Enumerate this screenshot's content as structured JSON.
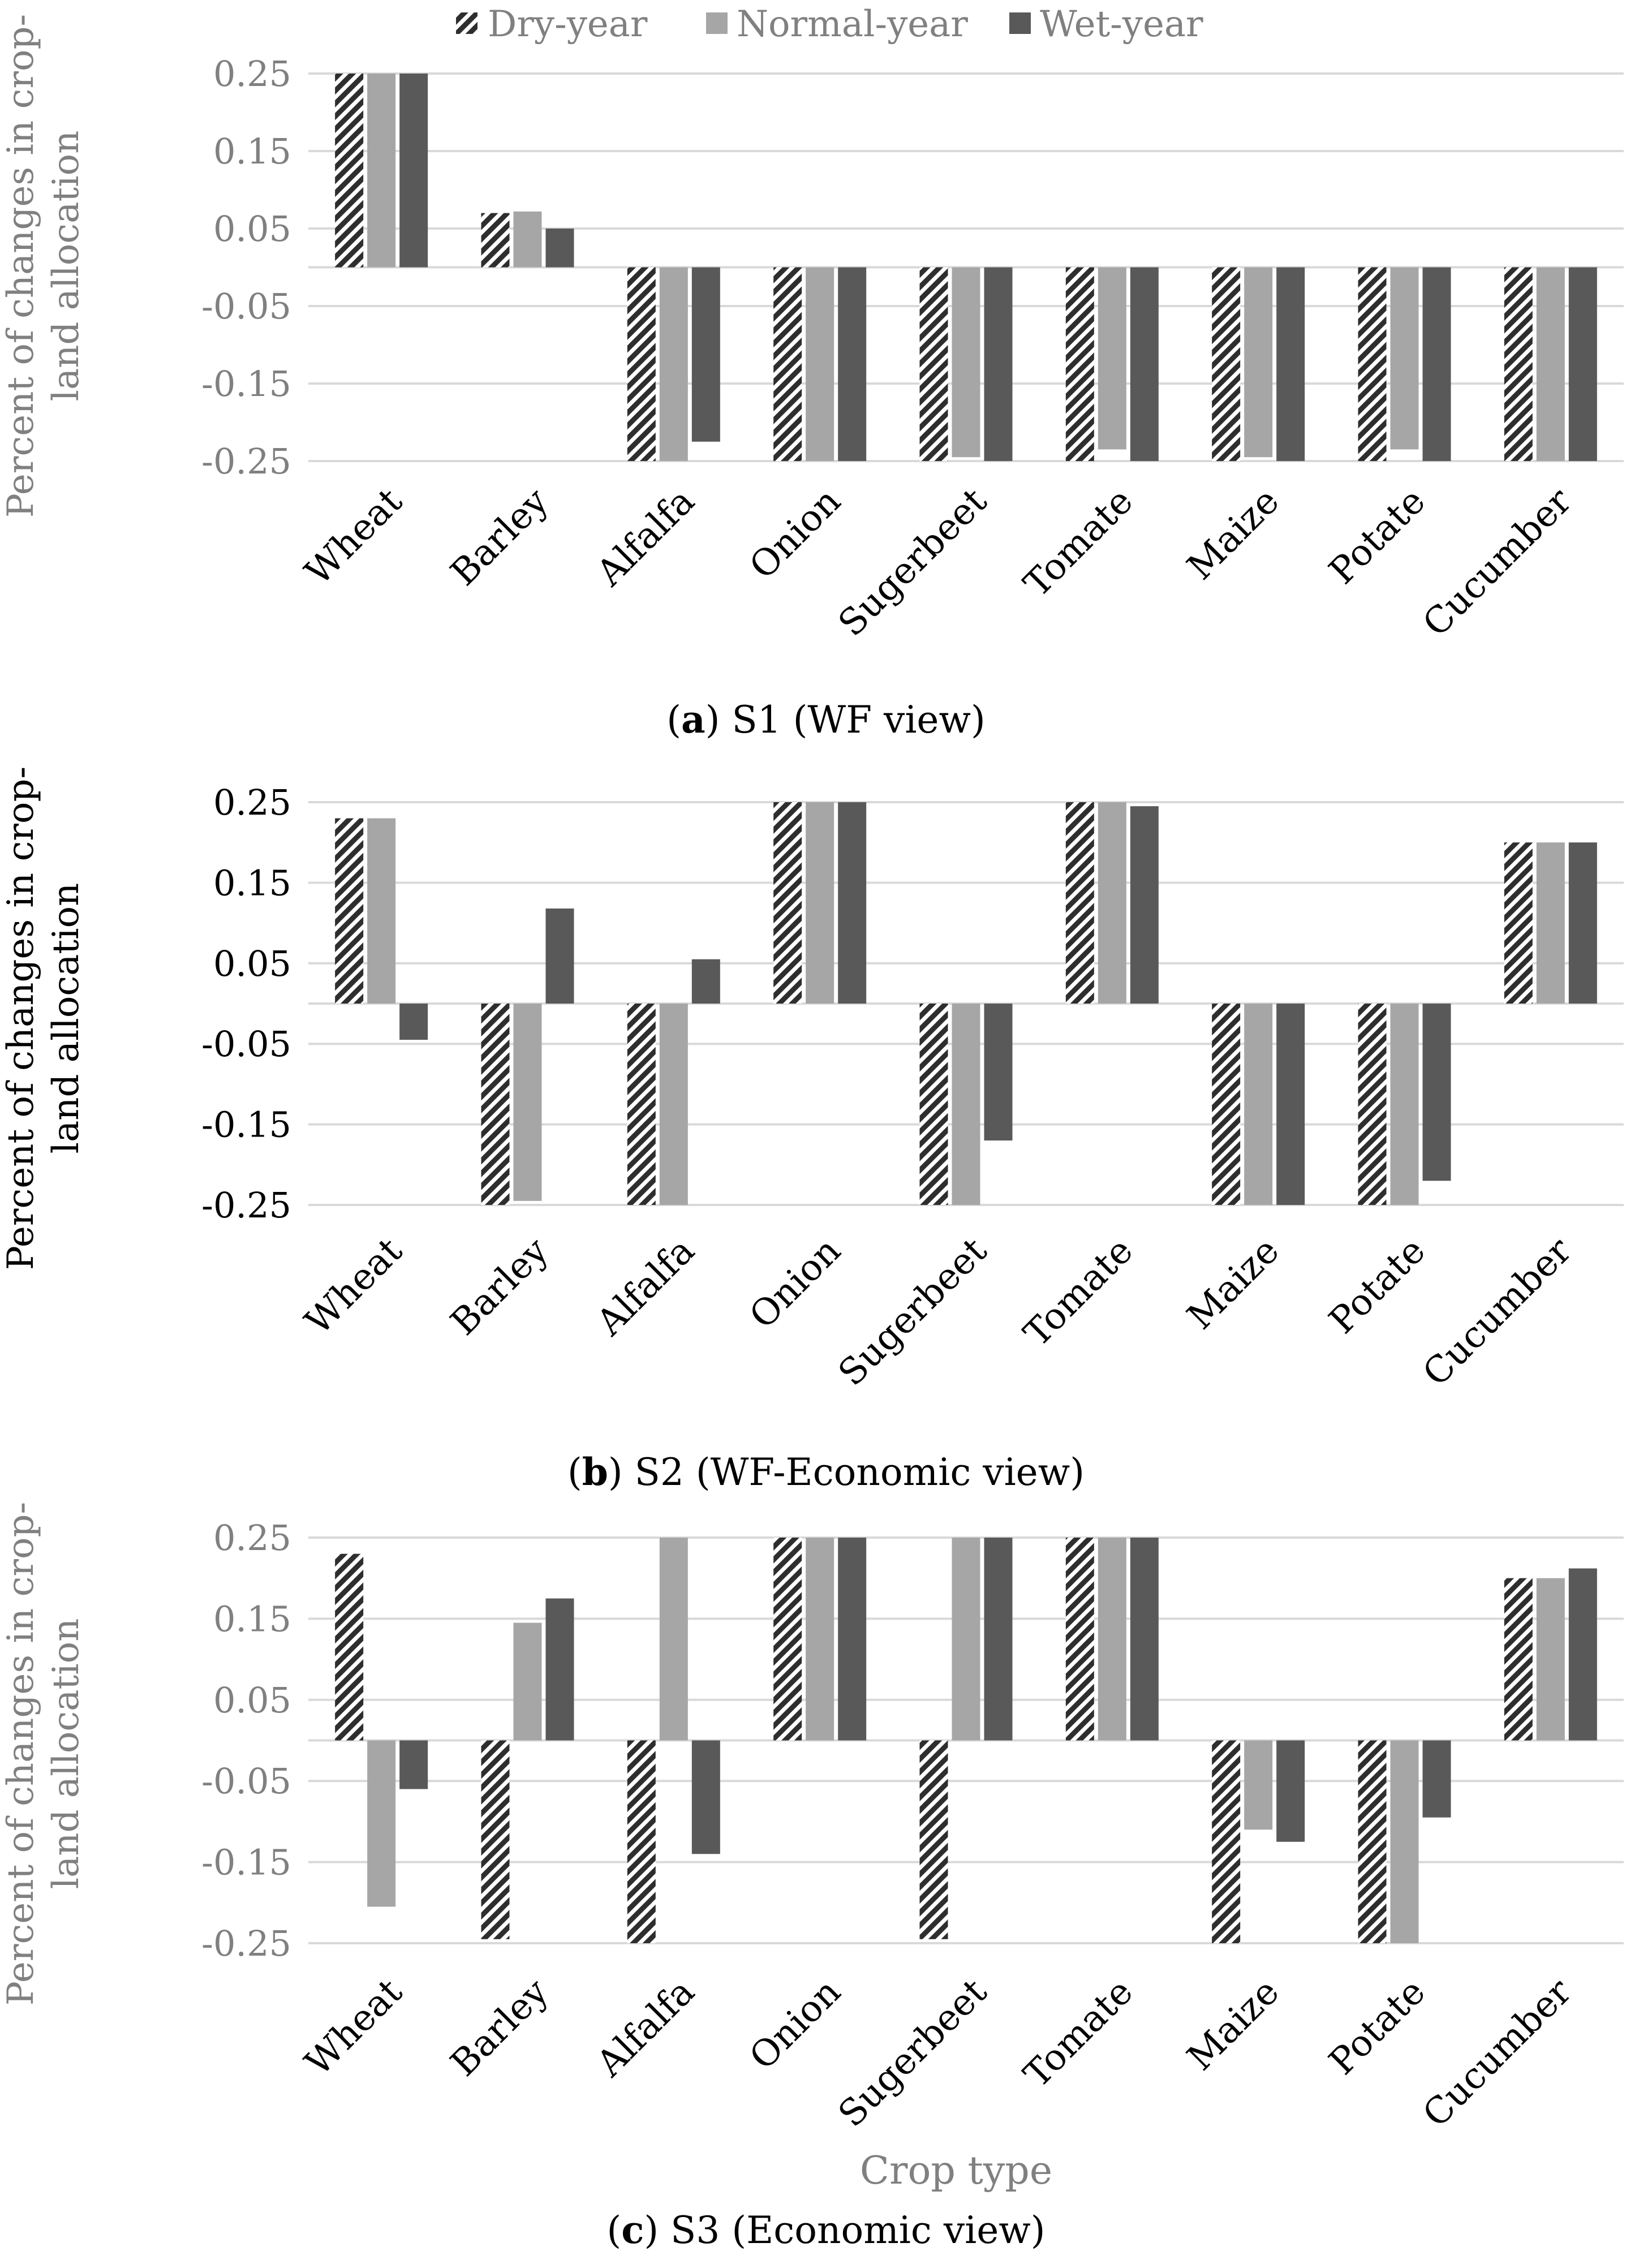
{
  "legend": {
    "items": [
      {
        "name": "Dry-year",
        "style": "hatch"
      },
      {
        "name": "Normal-year",
        "style": "solid-light"
      },
      {
        "name": "Wet-year",
        "style": "solid-dark"
      }
    ]
  },
  "xlabel_bottom": "Crop type",
  "colors": {
    "dry_hatch_dark": "#2e2e2e",
    "normal": "#a6a6a6",
    "wet": "#595959",
    "grid": "#d9d9d9",
    "axis_text_gray": "#808080",
    "axis_text_black": "#000000"
  },
  "chart_data": [
    {
      "type": "bar",
      "panel": "a",
      "caption_label": "a",
      "caption_text": "S1 (WF view)",
      "ylabel": "Percent of changes in crop-land allocation",
      "ylabel_lines": [
        "Percent of changes in crop-",
        "land allocation"
      ],
      "ylim": [
        -0.25,
        0.25
      ],
      "yticks": [
        0.25,
        0.15,
        0.05,
        -0.05,
        -0.15,
        -0.25
      ],
      "ytick_labels": [
        "0.25",
        "0.15",
        "0.05",
        "-0.05",
        "-0.15",
        "-0.25"
      ],
      "categories": [
        "Wheat",
        "Barley",
        "Alfalfa",
        "Onion",
        "Sugerbeet",
        "Tomate",
        "Maize",
        "Potate",
        "Cucumber"
      ],
      "series": [
        {
          "name": "Dry-year",
          "values": [
            0.25,
            0.07,
            -0.25,
            -0.25,
            -0.25,
            -0.25,
            -0.25,
            -0.25,
            -0.25
          ]
        },
        {
          "name": "Normal-year",
          "values": [
            0.25,
            0.072,
            -0.25,
            -0.25,
            -0.245,
            -0.235,
            -0.245,
            -0.235,
            -0.25
          ]
        },
        {
          "name": "Wet-year",
          "values": [
            0.25,
            0.05,
            -0.225,
            -0.25,
            -0.25,
            -0.25,
            -0.25,
            -0.25,
            -0.25
          ]
        }
      ]
    },
    {
      "type": "bar",
      "panel": "b",
      "caption_label": "b",
      "caption_text": "S2 (WF-Economic view)",
      "ylabel": "Percent of changes in crop-land allocation",
      "ylabel_lines": [
        "Percent of changes in crop-",
        "land allocation"
      ],
      "ylim": [
        -0.25,
        0.25
      ],
      "yticks": [
        0.25,
        0.15,
        0.05,
        -0.05,
        -0.15,
        -0.25
      ],
      "ytick_labels": [
        "0.25",
        "0.15",
        "0.05",
        "-0.05",
        "-0.15",
        "-0.25"
      ],
      "categories": [
        "Wheat",
        "Barley",
        "Alfalfa",
        "Onion",
        "Sugerbeet",
        "Tomate",
        "Maize",
        "Potate",
        "Cucumber"
      ],
      "series": [
        {
          "name": "Dry-year",
          "values": [
            0.23,
            -0.25,
            -0.25,
            0.25,
            -0.25,
            0.25,
            -0.25,
            -0.25,
            0.2
          ]
        },
        {
          "name": "Normal-year",
          "values": [
            0.23,
            -0.245,
            -0.25,
            0.25,
            -0.25,
            0.25,
            -0.25,
            -0.25,
            0.2
          ]
        },
        {
          "name": "Wet-year",
          "values": [
            -0.045,
            0.118,
            0.055,
            0.25,
            -0.17,
            0.245,
            -0.25,
            -0.22,
            0.2
          ]
        }
      ]
    },
    {
      "type": "bar",
      "panel": "c",
      "caption_label": "c",
      "caption_text": "S3 (Economic view)",
      "ylabel": "Percent of changes in crop-land allocation",
      "ylabel_lines": [
        "Percent of changes in crop-",
        "land allocation"
      ],
      "ylim": [
        -0.25,
        0.25
      ],
      "yticks": [
        0.25,
        0.15,
        0.05,
        -0.05,
        -0.15,
        -0.25
      ],
      "ytick_labels": [
        "0.25",
        "0.15",
        "0.05",
        "-0.05",
        "-0.15",
        "-0.25"
      ],
      "categories": [
        "Wheat",
        "Barley",
        "Alfalfa",
        "Onion",
        "Sugerbeet",
        "Tomate",
        "Maize",
        "Potate",
        "Cucumber"
      ],
      "series": [
        {
          "name": "Dry-year",
          "values": [
            0.23,
            -0.245,
            -0.25,
            0.25,
            -0.245,
            0.25,
            -0.25,
            -0.25,
            0.2
          ]
        },
        {
          "name": "Normal-year",
          "values": [
            -0.205,
            0.145,
            0.25,
            0.25,
            0.25,
            0.25,
            -0.11,
            -0.25,
            0.2
          ]
        },
        {
          "name": "Wet-year",
          "values": [
            -0.06,
            0.175,
            -0.14,
            0.25,
            0.25,
            0.25,
            -0.125,
            -0.095,
            0.212
          ]
        }
      ]
    }
  ]
}
